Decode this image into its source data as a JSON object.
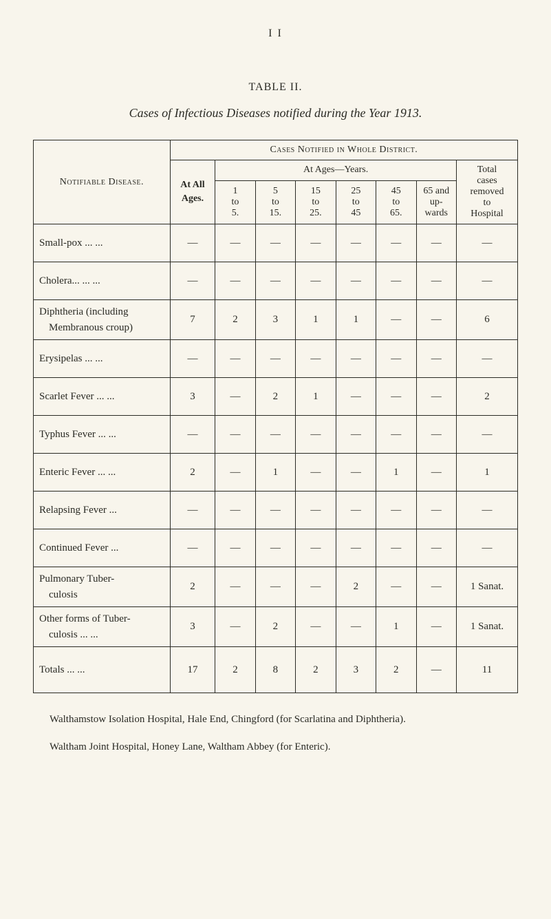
{
  "page_number_roman": "I I",
  "table_label": "TABLE II.",
  "table_title_prefix": "Cases of Infectious Diseases notified during the Year ",
  "table_title_year": "1913",
  "table_title_suffix": ".",
  "headers": {
    "disease_col": "Notifiable Disease.",
    "cases_header": "Cases Notified in Whole District.",
    "at_all_line1": "At All",
    "at_all_line2": "Ages.",
    "at_ages": "At Ages—Years.",
    "removed_line1": "Total",
    "removed_line2": "cases",
    "removed_line3": "removed",
    "removed_line4": "to",
    "removed_line5": "Hospital",
    "age_groups": [
      {
        "l1": "1",
        "l2": "to",
        "l3": "5."
      },
      {
        "l1": "5",
        "l2": "to",
        "l3": "15."
      },
      {
        "l1": "15",
        "l2": "to",
        "l3": "25."
      },
      {
        "l1": "25",
        "l2": "to",
        "l3": "45"
      },
      {
        "l1": "45",
        "l2": "to",
        "l3": "65."
      },
      {
        "l1": "65 and",
        "l2": "up-",
        "l3": "wards"
      }
    ]
  },
  "rows": [
    {
      "disease": "Small-pox     ...     ...",
      "all": "—",
      "a": [
        "—",
        "—",
        "—",
        "—",
        "—",
        "—"
      ],
      "hosp": "—"
    },
    {
      "disease": "Cholera...     ...     ...",
      "all": "—",
      "a": [
        "—",
        "—",
        "—",
        "—",
        "—",
        "—"
      ],
      "hosp": "—"
    },
    {
      "disease": "Diphtheria (including",
      "two_line": true
    },
    {
      "disease": "Membranous croup)",
      "indent": true,
      "all": "7",
      "a": [
        "2",
        "3",
        "1",
        "1",
        "—",
        "—"
      ],
      "hosp": "6"
    },
    {
      "disease": "Erysipelas     ...     ...",
      "all": "—",
      "a": [
        "—",
        "—",
        "—",
        "—",
        "—",
        "—"
      ],
      "hosp": "—"
    },
    {
      "disease": "Scarlet Fever ...     ...",
      "all": "3",
      "a": [
        "—",
        "2",
        "1",
        "—",
        "—",
        "—"
      ],
      "hosp": "2"
    },
    {
      "disease": "Typhus Fever ...     ...",
      "all": "—",
      "a": [
        "—",
        "—",
        "—",
        "—",
        "—",
        "—"
      ],
      "hosp": "—"
    },
    {
      "disease": "Enteric Fever ...     ...",
      "all": "2",
      "a": [
        "—",
        "1",
        "—",
        "—",
        "1",
        "—"
      ],
      "hosp": "1"
    },
    {
      "disease": "Relapsing Fever     ...",
      "all": "—",
      "a": [
        "—",
        "—",
        "—",
        "—",
        "—",
        "—"
      ],
      "hosp": "—"
    },
    {
      "disease": "Continued Fever    ...",
      "all": "—",
      "a": [
        "—",
        "—",
        "—",
        "—",
        "—",
        "—"
      ],
      "hosp": "—"
    },
    {
      "disease": "Pulmonary Tuber-",
      "two_line": true
    },
    {
      "disease": "culosis",
      "indent": true,
      "all": "2",
      "a": [
        "—",
        "—",
        "—",
        "2",
        "—",
        "—"
      ],
      "hosp": "1 Sanat."
    },
    {
      "disease": "Other forms of Tuber-",
      "two_line": true
    },
    {
      "disease": "culosis     ...     ...",
      "indent": true,
      "all": "3",
      "a": [
        "—",
        "2",
        "—",
        "—",
        "1",
        "—"
      ],
      "hosp": "1 Sanat."
    }
  ],
  "totals": {
    "label": "Totals     ...     ...",
    "all": "17",
    "a": [
      "2",
      "8",
      "2",
      "3",
      "2",
      "—"
    ],
    "hosp": "11"
  },
  "footnotes": [
    "Walthamstow Isolation Hospital, Hale End, Chingford (for Scarlatina and Diphtheria).",
    "Waltham Joint Hospital, Honey Lane, Waltham Abbey (for Enteric)."
  ],
  "colors": {
    "background": "#f8f5ec",
    "text": "#2a2a24",
    "border": "#2a2a24"
  },
  "dash": "—"
}
